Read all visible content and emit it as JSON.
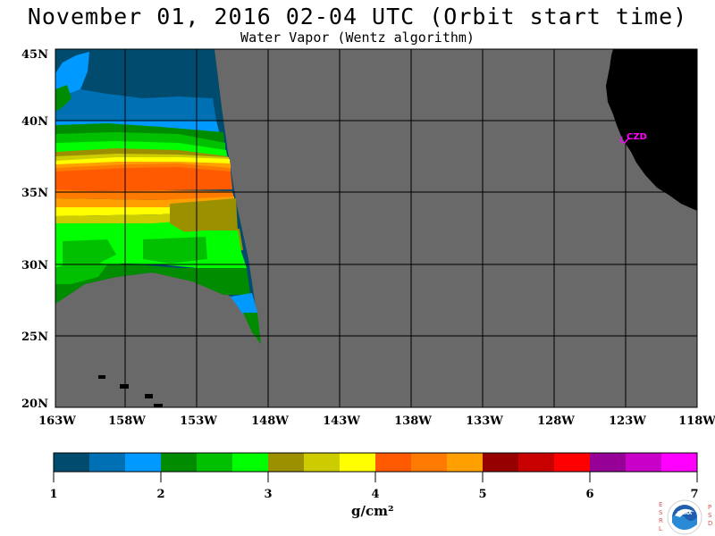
{
  "header": {
    "title": "November 01, 2016  02-04 UTC  (Orbit start time)",
    "subtitle": "Water Vapor (Wentz algorithm)"
  },
  "map": {
    "lat_labels": [
      "45N",
      "40N",
      "35N",
      "30N",
      "25N",
      "20N"
    ],
    "lon_labels": [
      "163W",
      "158W",
      "153W",
      "148W",
      "143W",
      "138W",
      "133W",
      "128W",
      "123W",
      "118W"
    ],
    "station_label": "CZD",
    "colors": {
      "no_data": "#696969",
      "land": "#000000",
      "station": "#ff00ff"
    }
  },
  "colorbar": {
    "tick_labels": [
      "1",
      "2",
      "3",
      "4",
      "5",
      "6",
      "7"
    ],
    "unit": "g/cm²",
    "colors": [
      "#004b6e",
      "#0070b4",
      "#0099ff",
      "#008c00",
      "#00c000",
      "#00ff00",
      "#9a9000",
      "#cccc00",
      "#ffff00",
      "#ff5a00",
      "#ff7a00",
      "#ffa000",
      "#960000",
      "#c80000",
      "#ff0000",
      "#960096",
      "#c800c8",
      "#ff00ff"
    ]
  },
  "logo": {
    "left_text": "ESRL",
    "right_text": "PSD",
    "center_text": "NOAA"
  }
}
